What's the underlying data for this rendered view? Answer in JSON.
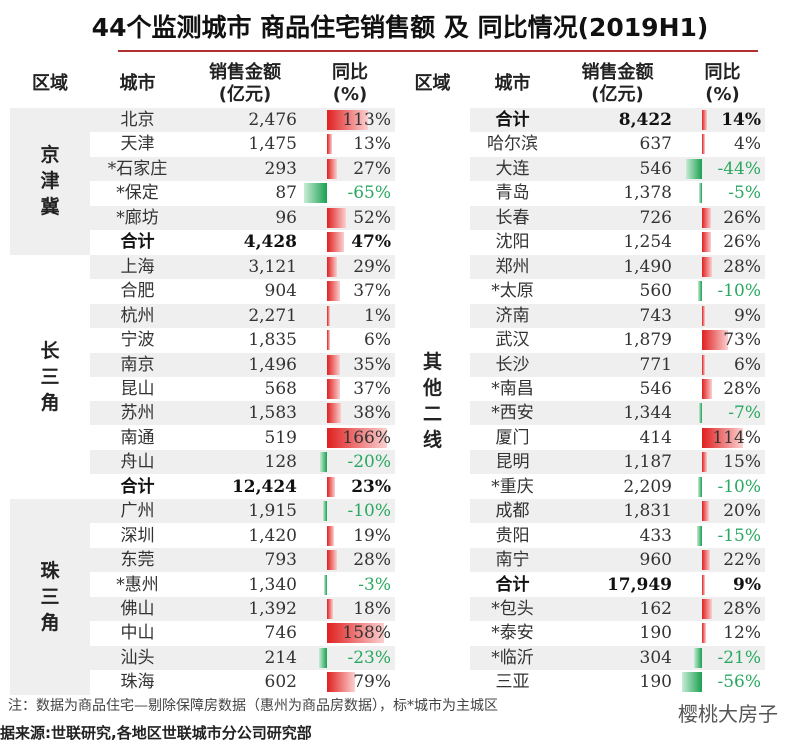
{
  "title": "44个监测城市 商品住宅销售额 及 同比情况(2019H1)",
  "chart_data": {
    "type": "table",
    "headers": {
      "region": "区域",
      "city": "城市",
      "amount": "销售金额",
      "amount_unit": "(亿元)",
      "yoy": "同比",
      "yoy_unit": "(%)"
    },
    "left": [
      {
        "region": "京津冀",
        "rows": [
          [
            "北京",
            "2,476",
            113
          ],
          [
            "天津",
            "1,475",
            13
          ],
          [
            "*石家庄",
            "293",
            27
          ],
          [
            "*保定",
            "87",
            -65
          ],
          [
            "*廊坊",
            "96",
            52
          ],
          [
            "合计",
            "4,428",
            47,
            true
          ]
        ]
      },
      {
        "region": "长三角",
        "rows": [
          [
            "上海",
            "3,121",
            29
          ],
          [
            "合肥",
            "904",
            37
          ],
          [
            "杭州",
            "2,271",
            1
          ],
          [
            "宁波",
            "1,835",
            6
          ],
          [
            "南京",
            "1,496",
            35
          ],
          [
            "昆山",
            "568",
            37
          ],
          [
            "苏州",
            "1,583",
            38
          ],
          [
            "南通",
            "519",
            166
          ],
          [
            "舟山",
            "128",
            -20
          ],
          [
            "合计",
            "12,424",
            23,
            true
          ]
        ]
      },
      {
        "region": "珠三角",
        "rows": [
          [
            "广州",
            "1,915",
            -10
          ],
          [
            "深圳",
            "1,420",
            19
          ],
          [
            "东莞",
            "793",
            28
          ],
          [
            "*惠州",
            "1,340",
            -3
          ],
          [
            "佛山",
            "1,392",
            18
          ],
          [
            "中山",
            "746",
            158
          ],
          [
            "汕头",
            "214",
            -23
          ],
          [
            "珠海",
            "602",
            79
          ]
        ]
      }
    ],
    "right": [
      {
        "region": "",
        "rows": [
          [
            "合计",
            "8,422",
            14,
            true
          ],
          [
            "哈尔滨",
            "637",
            4
          ],
          [
            "大连",
            "546",
            -44
          ],
          [
            "青岛",
            "1,378",
            -5
          ],
          [
            "长春",
            "726",
            26
          ],
          [
            "沈阳",
            "1,254",
            26
          ],
          [
            "郑州",
            "1,490",
            28
          ],
          [
            "*太原",
            "560",
            -10
          ],
          [
            "济南",
            "743",
            9
          ],
          [
            "武汉",
            "1,879",
            73
          ],
          [
            "长沙",
            "771",
            6
          ],
          [
            "*南昌",
            "546",
            28
          ],
          [
            "*西安",
            "1,344",
            -7
          ],
          [
            "厦门",
            "414",
            114
          ],
          [
            "昆明",
            "1,187",
            15
          ],
          [
            "*重庆",
            "2,209",
            -10
          ],
          [
            "成都",
            "1,831",
            20
          ],
          [
            "贵阳",
            "433",
            -15
          ],
          [
            "南宁",
            "960",
            22
          ],
          [
            "合计",
            "17,949",
            9,
            true
          ],
          [
            "*包头",
            "162",
            28
          ],
          [
            "*泰安",
            "190",
            12
          ],
          [
            "*临沂",
            "304",
            -21
          ],
          [
            "三亚",
            "190",
            -56
          ]
        ]
      }
    ],
    "right_region_label": "其他二线"
  },
  "note": "注：数据为商品住宅—剔除保障房数据（惠州为商品房数据），标*城市为主城区",
  "source": "据来源:世联研究,各地区世联城市分公司研究部",
  "watermark": "樱桃大房子",
  "colors": {
    "pos": "#e02020",
    "neg": "#1aa050",
    "rule": "#b03030"
  }
}
